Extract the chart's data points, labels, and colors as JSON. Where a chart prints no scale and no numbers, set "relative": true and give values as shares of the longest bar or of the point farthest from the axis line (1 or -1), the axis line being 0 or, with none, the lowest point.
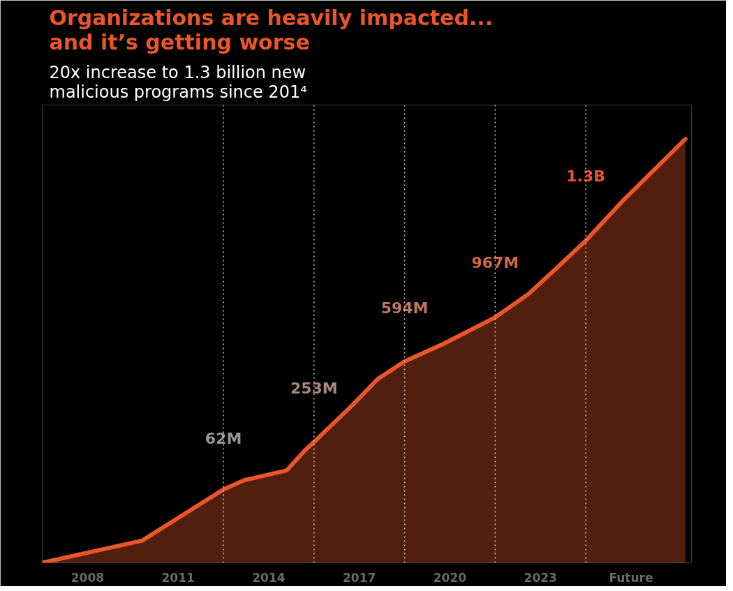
{
  "chart_data": {
    "type": "area",
    "title": "Organizations are heavily impacted...\nand it’s getting worse",
    "subtitle": "20x increase to 1.3 billion new\nmalicious programs since 201⁴",
    "relative": true,
    "grid": false,
    "xlim": [
      2006.5,
      2028
    ],
    "xticks": [
      2008,
      2011,
      2014,
      2017,
      2020,
      2023,
      {
        "value": 2026,
        "label": "Future"
      }
    ],
    "x": [
      2006.5,
      2009.8,
      2012.5,
      2013.2,
      2014.6,
      2015.2,
      2015.5,
      2016.8,
      2017.6,
      2018.5,
      2019.8,
      2021.5,
      2022.6,
      2023.5,
      2024.5,
      2025.7,
      2027.8
    ],
    "series": [
      {
        "color": "#e8562a",
        "values": [
          0,
          0.052,
          0.173,
          0.195,
          0.218,
          0.265,
          0.285,
          0.374,
          0.433,
          0.475,
          0.517,
          0.579,
          0.634,
          0.693,
          0.76,
          0.852,
          1
        ]
      }
    ],
    "ref_lines": [
      {
        "axis": "x",
        "value": 2012.5,
        "line_style": "dotted"
      },
      {
        "axis": "x",
        "value": 2015.5,
        "line_style": "dotted"
      },
      {
        "axis": "x",
        "value": 2018.5,
        "line_style": "dotted"
      },
      {
        "axis": "x",
        "value": 2021.5,
        "line_style": "dotted"
      },
      {
        "axis": "x",
        "value": 2024.5,
        "line_style": "dotted"
      }
    ],
    "annotations": [
      {
        "text": "62M",
        "x": 2012.5,
        "y": 0.273
      },
      {
        "text": "253M",
        "x": 2015.5,
        "y": 0.391
      },
      {
        "text": "594M",
        "x": 2018.5,
        "y": 0.58
      },
      {
        "text": "967M",
        "x": 2021.5,
        "y": 0.688
      },
      {
        "text": "1.3B",
        "x": 2024.5,
        "y": 0.891
      }
    ]
  }
}
